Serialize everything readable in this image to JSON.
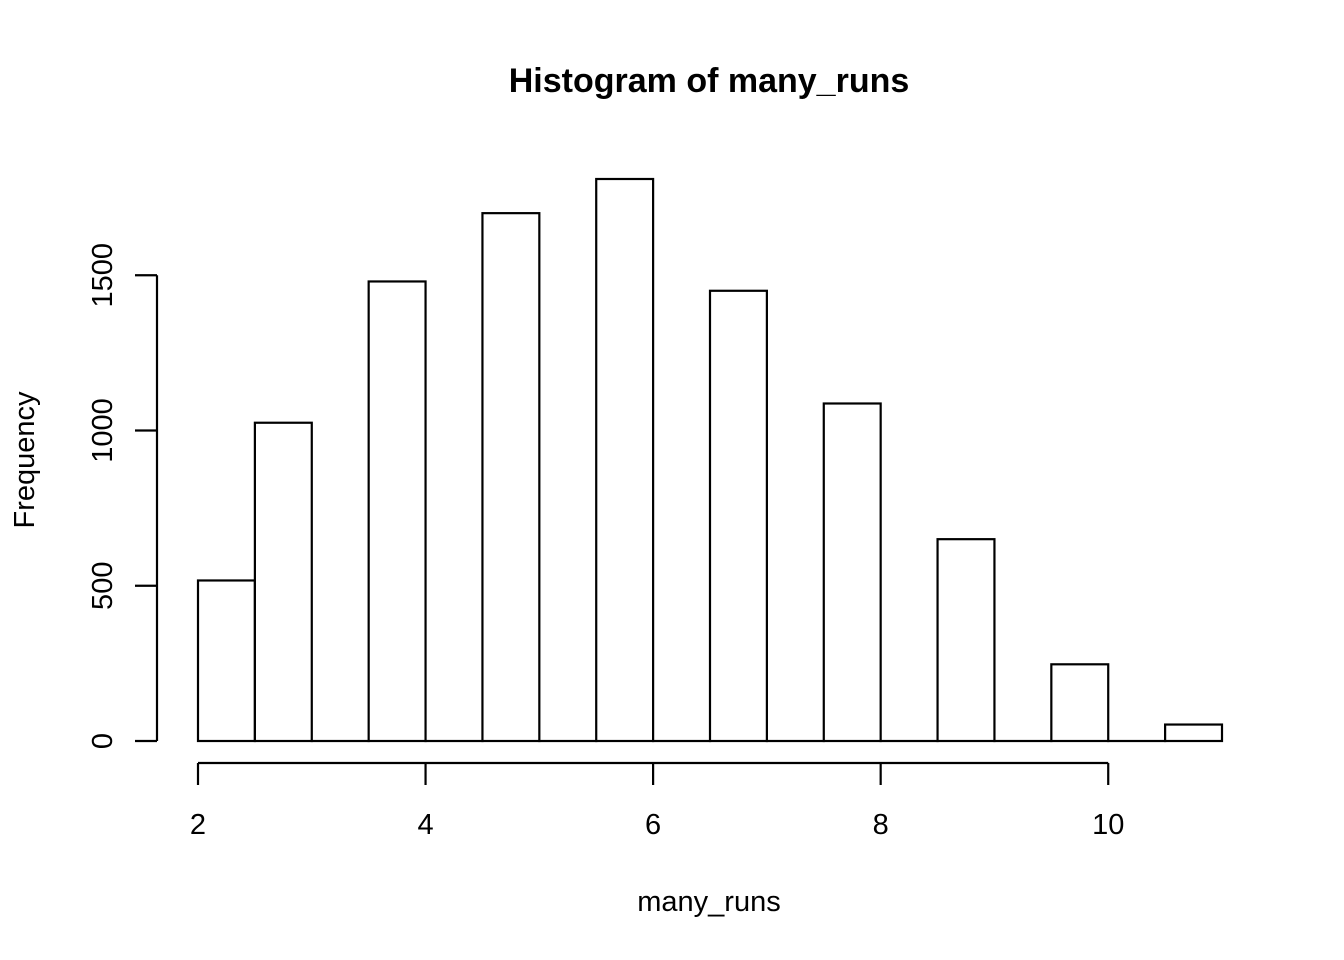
{
  "chart_data": {
    "type": "bar",
    "title": "Histogram of many_runs",
    "xlabel": "many_runs",
    "ylabel": "Frequency",
    "bins": [
      {
        "from": 2.0,
        "to": 2.5,
        "value": 517
      },
      {
        "from": 2.5,
        "to": 3.0,
        "value": 1025
      },
      {
        "from": 3.0,
        "to": 3.5,
        "value": 0
      },
      {
        "from": 3.5,
        "to": 4.0,
        "value": 1480
      },
      {
        "from": 4.0,
        "to": 4.5,
        "value": 0
      },
      {
        "from": 4.5,
        "to": 5.0,
        "value": 1700
      },
      {
        "from": 5.0,
        "to": 5.5,
        "value": 0
      },
      {
        "from": 5.5,
        "to": 6.0,
        "value": 1810
      },
      {
        "from": 6.0,
        "to": 6.5,
        "value": 0
      },
      {
        "from": 6.5,
        "to": 7.0,
        "value": 1450
      },
      {
        "from": 7.0,
        "to": 7.5,
        "value": 0
      },
      {
        "from": 7.5,
        "to": 8.0,
        "value": 1087
      },
      {
        "from": 8.0,
        "to": 8.5,
        "value": 0
      },
      {
        "from": 8.5,
        "to": 9.0,
        "value": 650
      },
      {
        "from": 9.0,
        "to": 9.5,
        "value": 0
      },
      {
        "from": 9.5,
        "to": 10.0,
        "value": 247
      },
      {
        "from": 10.0,
        "to": 10.5,
        "value": 0
      },
      {
        "from": 10.5,
        "to": 11.0,
        "value": 53
      }
    ],
    "xlim": [
      2,
      11
    ],
    "ylim": [
      0,
      1810
    ],
    "x_ticks": [
      2,
      4,
      6,
      8,
      10
    ],
    "y_ticks": [
      0,
      500,
      1000,
      1500
    ],
    "x_tick_labels": [
      "2",
      "4",
      "6",
      "8",
      "10"
    ],
    "y_tick_labels": [
      "0",
      "500",
      "1000",
      "1500"
    ],
    "grid": false,
    "legend": "none"
  }
}
